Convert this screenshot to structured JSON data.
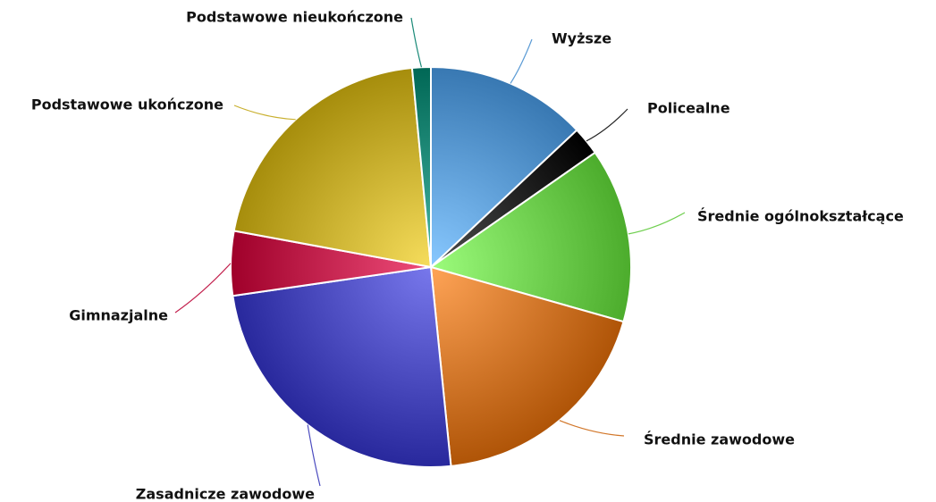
{
  "chart_data": {
    "type": "pie",
    "title": "",
    "slices": [
      {
        "label": "Wyższe",
        "value": 13.0,
        "color": "#5b9bd5"
      },
      {
        "label": "Policealne",
        "value": 2.3,
        "color": "#222222"
      },
      {
        "label": "Średnie ogólnokształcące",
        "value": 14.1,
        "color": "#6fcf4f"
      },
      {
        "label": "Średnie zawodowe",
        "value": 19.0,
        "color": "#d2772a"
      },
      {
        "label": "Zasadnicze zawodowe",
        "value": 24.3,
        "color": "#4b4bbf"
      },
      {
        "label": "Gimnazjalne",
        "value": 5.2,
        "color": "#c2204d"
      },
      {
        "label": "Podstawowe ukończone",
        "value": 20.6,
        "color": "#c9b02f"
      },
      {
        "label": "Podstawowe nieukończone",
        "value": 1.5,
        "color": "#1a8a78"
      }
    ]
  }
}
